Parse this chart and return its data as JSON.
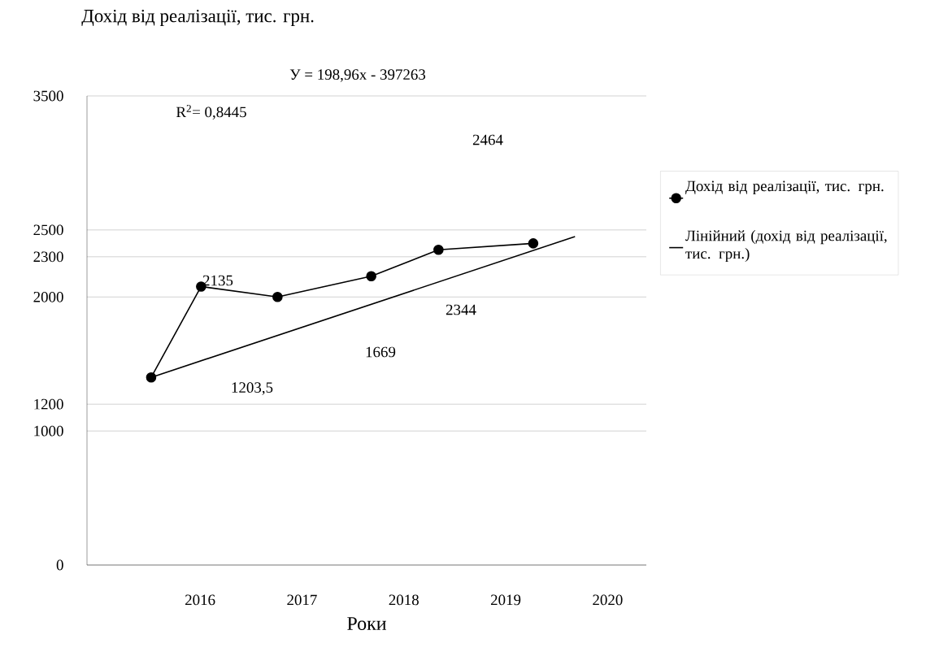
{
  "chart_data": {
    "type": "line",
    "title": "Дохід від реалізації, тис. грн.",
    "xlabel": "Роки",
    "series": [
      {
        "name": "Дохід від реалізації, тис. грн.",
        "color": "#000000",
        "marker": "circle",
        "x": [
          2015.52,
          2016.01,
          2016.76,
          2017.68,
          2018.34,
          2019.27
        ],
        "values": [
          1400,
          2078,
          2000,
          2155,
          2352,
          2400
        ]
      },
      {
        "name": "Лінійний (дохід від реалізації, тис. грн.)",
        "type": "line",
        "color": "#000000",
        "marker": "none",
        "x": [
          2015.52,
          2019.68
        ],
        "values": [
          1400,
          2450
        ]
      }
    ],
    "xlim": [
      2014.89,
      2020.38
    ],
    "xticks": [
      2016,
      2017,
      2018,
      2019,
      2020
    ],
    "ylim": [
      0,
      3500
    ],
    "yticks": [
      0,
      1000,
      1200,
      2000,
      2300,
      2500,
      3500
    ],
    "grid": "y",
    "legend": "right",
    "annotations": [
      "У = 198,96x - 397263",
      "R$^{2}$= 0,8445",
      "2464",
      "2135",
      "2344",
      "1669",
      "1203,5"
    ]
  }
}
